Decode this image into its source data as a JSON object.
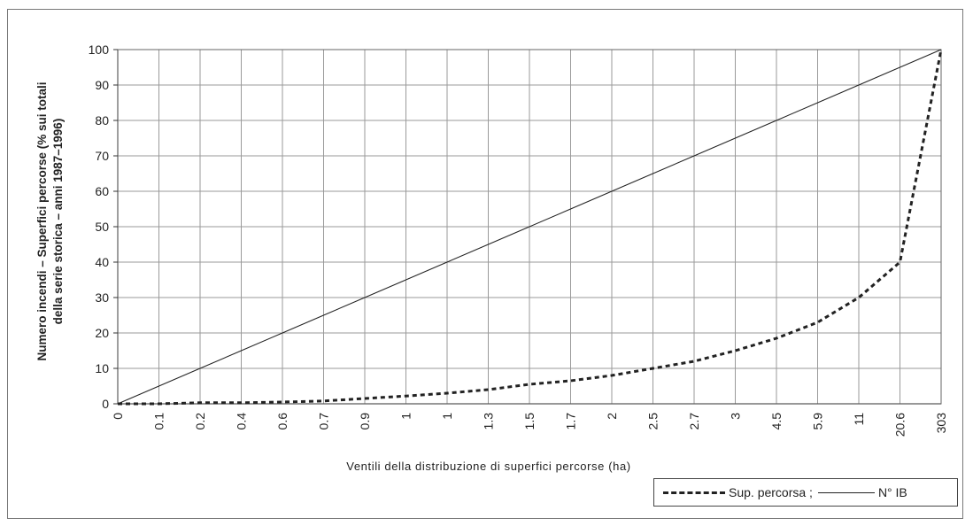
{
  "chart_data": {
    "type": "line",
    "title": "",
    "xlabel": "Ventili della distribuzione di superfici percorse (ha)",
    "ylabel_lines": [
      "Numero incendi – Superfici percorse (% sui totali",
      "della serie storica – anni 1987–1996)"
    ],
    "categories": [
      "0",
      "0.1",
      "0.2",
      "0.4",
      "0.6",
      "0.7",
      "0.9",
      "1",
      "1",
      "1.3",
      "1.5",
      "1.7",
      "2",
      "2.5",
      "2.7",
      "3",
      "4.5",
      "5.9",
      "11",
      "20.6",
      "303"
    ],
    "ylim": [
      0,
      100
    ],
    "yticks": [
      "0",
      "10",
      "20",
      "30",
      "40",
      "50",
      "60",
      "70",
      "80",
      "90",
      "100"
    ],
    "grid": true,
    "legend_position": "bottom-right",
    "series": [
      {
        "name": "Sup. percorsa ;",
        "style": "dashed",
        "color": "#222222",
        "values": [
          0,
          0,
          0.3,
          0.3,
          0.5,
          0.8,
          1.5,
          2.2,
          3,
          4,
          5.5,
          6.5,
          8,
          10,
          12,
          15,
          18.5,
          23,
          30,
          40,
          100
        ]
      },
      {
        "name": "N° IB",
        "style": "solid",
        "color": "#222222",
        "values": [
          0,
          5,
          10,
          15,
          20,
          25,
          30,
          35,
          40,
          45,
          50,
          55,
          60,
          65,
          70,
          75,
          80,
          85,
          90,
          95,
          100
        ]
      }
    ]
  }
}
